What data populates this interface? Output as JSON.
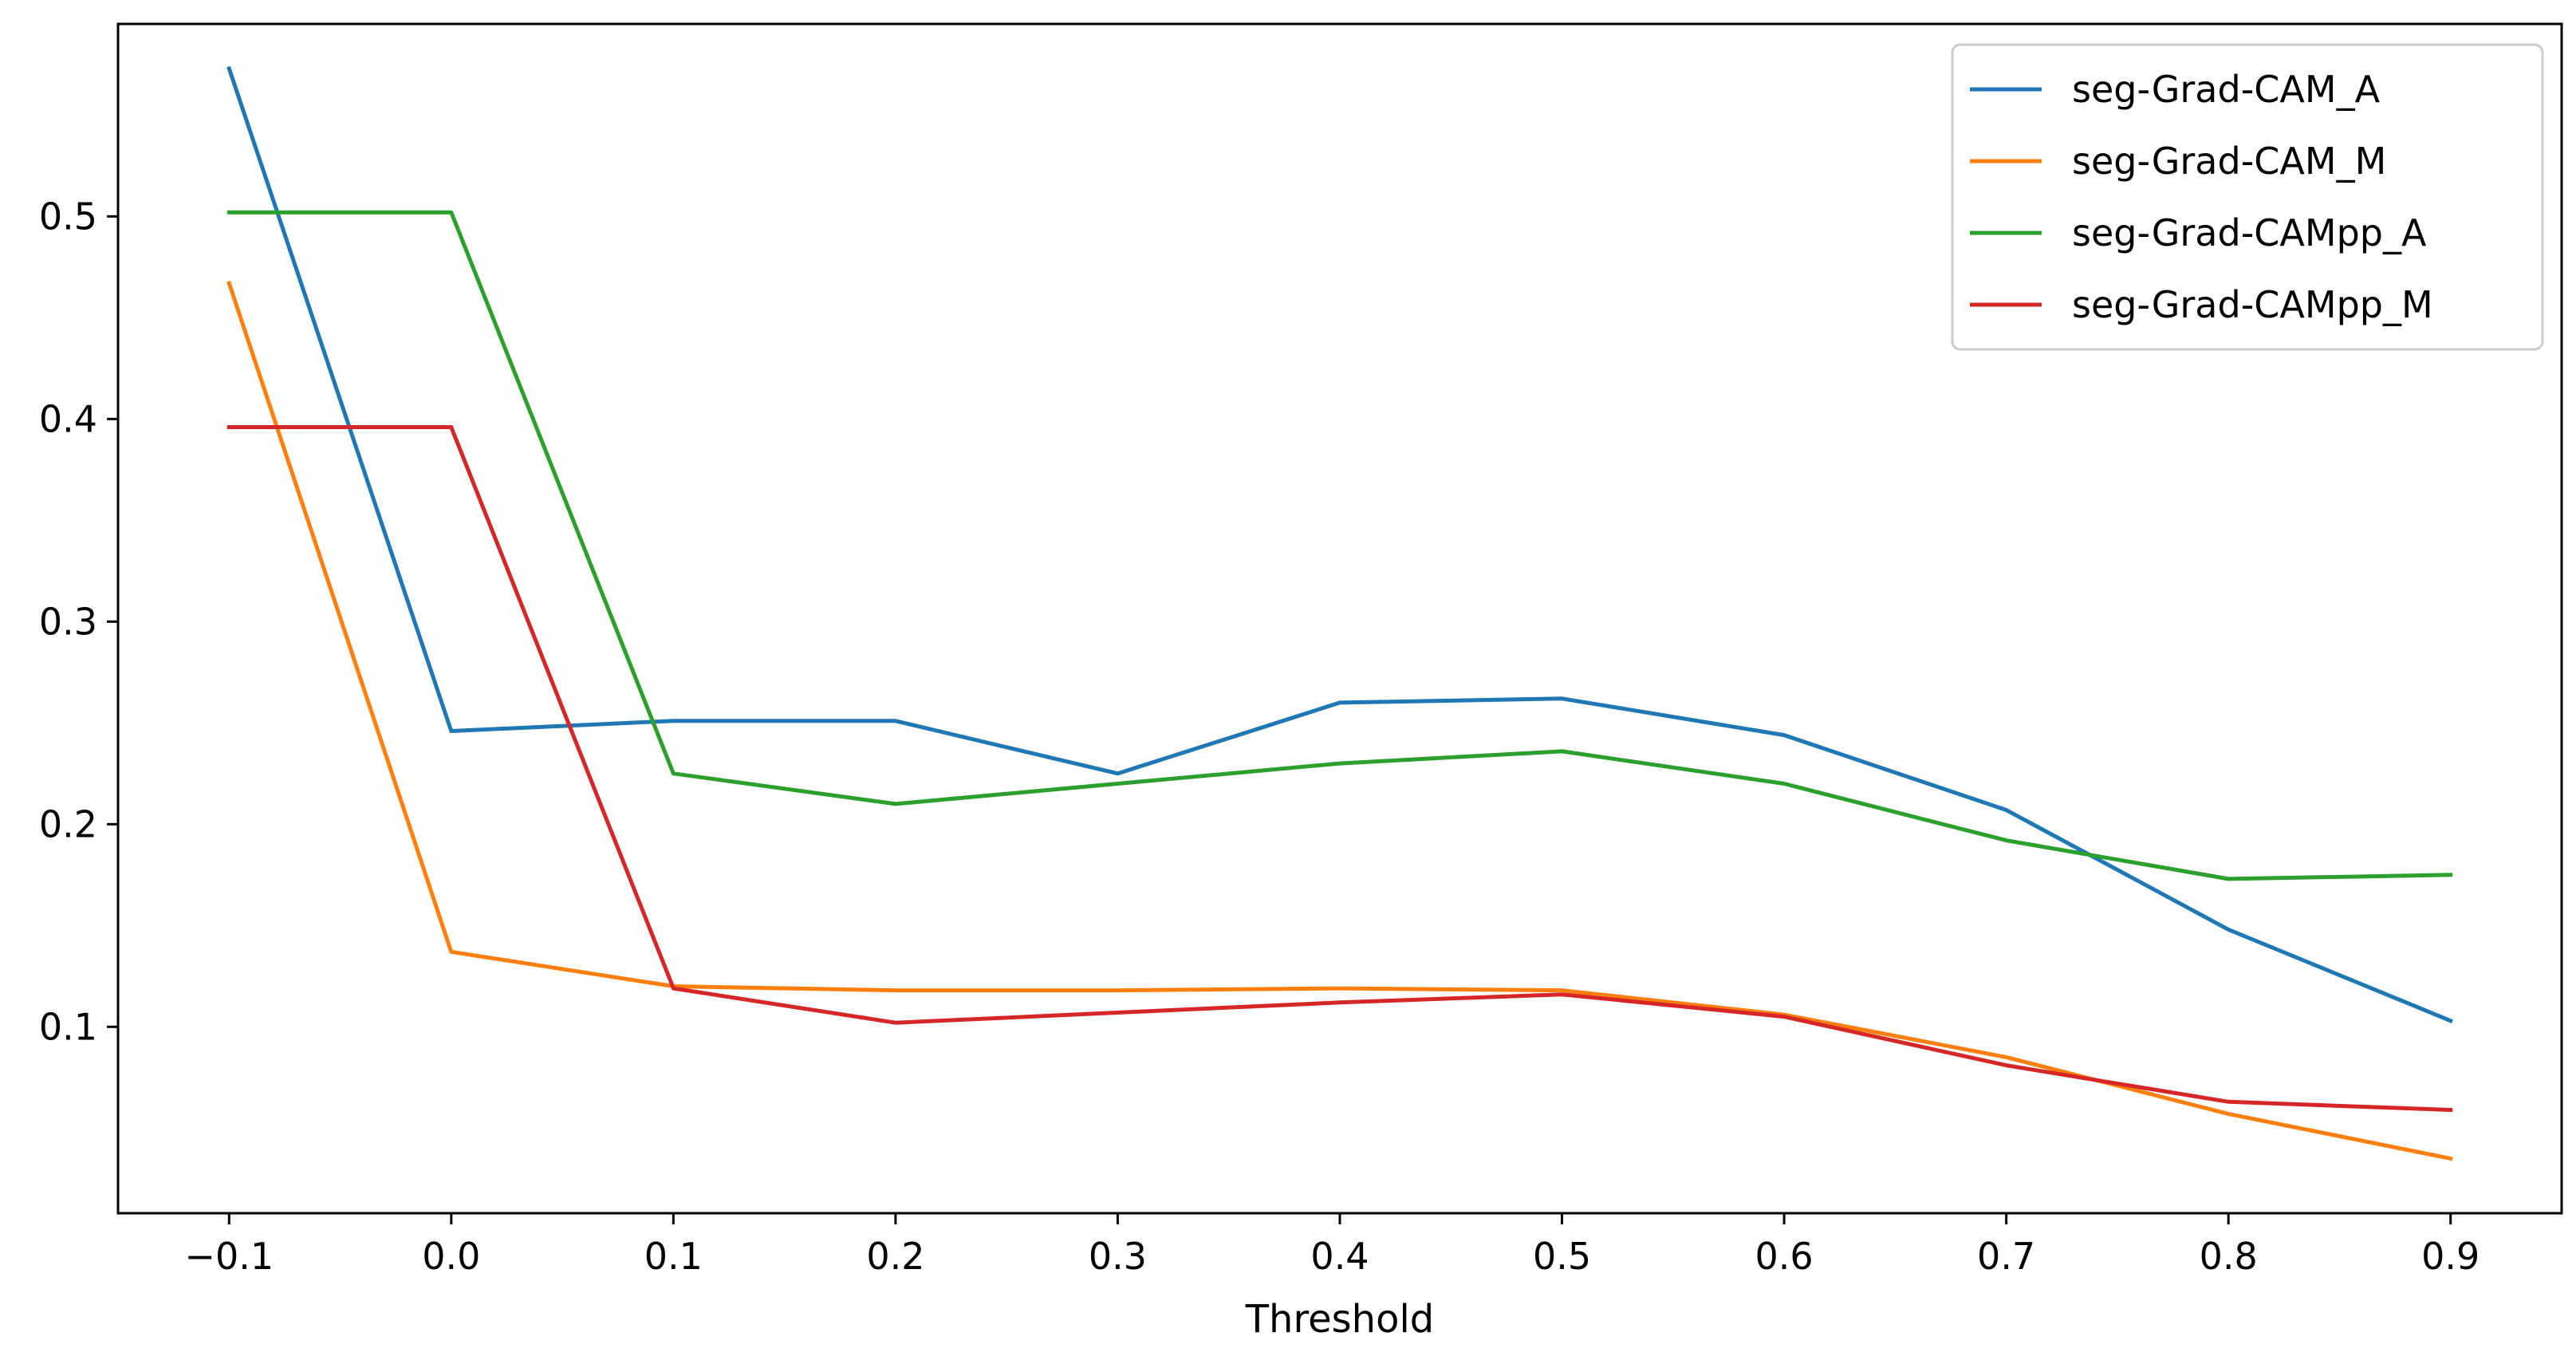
{
  "chart_data": {
    "type": "line",
    "title": "",
    "xlabel": "Threshold",
    "ylabel": "",
    "x": [
      -0.1,
      0.0,
      0.1,
      0.2,
      0.3,
      0.4,
      0.5,
      0.6,
      0.7,
      0.8,
      0.9
    ],
    "x_ticks": [
      -0.1,
      0.0,
      0.1,
      0.2,
      0.3,
      0.4,
      0.5,
      0.6,
      0.7,
      0.8,
      0.9
    ],
    "x_tick_labels": [
      "−0.1",
      "0.0",
      "0.1",
      "0.2",
      "0.3",
      "0.4",
      "0.5",
      "0.6",
      "0.7",
      "0.8",
      "0.9"
    ],
    "y_ticks": [
      0.1,
      0.2,
      0.3,
      0.4,
      0.5
    ],
    "y_tick_labels": [
      "0.1",
      "0.2",
      "0.3",
      "0.4",
      "0.5"
    ],
    "xlim": [
      -0.15,
      0.95
    ],
    "ylim": [
      0.008,
      0.595
    ],
    "grid": false,
    "legend_position": "top-right",
    "series": [
      {
        "name": "seg-Grad-CAM_A",
        "color": "#1f77b4",
        "values": [
          0.573,
          0.246,
          0.251,
          0.251,
          0.225,
          0.26,
          0.262,
          0.244,
          0.207,
          0.148,
          0.103
        ]
      },
      {
        "name": "seg-Grad-CAM_M",
        "color": "#ff7f0e",
        "values": [
          0.467,
          0.137,
          0.12,
          0.118,
          0.118,
          0.119,
          0.118,
          0.106,
          0.085,
          0.057,
          0.035
        ]
      },
      {
        "name": "seg-Grad-CAMpp_A",
        "color": "#2ca02c",
        "values": [
          0.502,
          0.502,
          0.225,
          0.21,
          0.22,
          0.23,
          0.236,
          0.22,
          0.192,
          0.173,
          0.175
        ]
      },
      {
        "name": "seg-Grad-CAMpp_M",
        "color": "#d62728",
        "values": [
          0.396,
          0.396,
          0.119,
          0.102,
          0.107,
          0.112,
          0.116,
          0.105,
          0.081,
          0.063,
          0.059
        ]
      }
    ]
  }
}
